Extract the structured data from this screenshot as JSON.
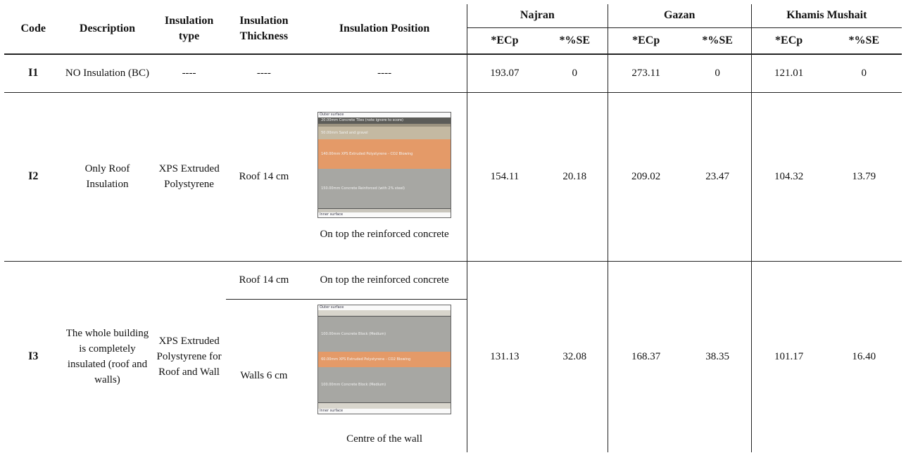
{
  "headers": {
    "code": "Code",
    "description": "Description",
    "insulation_type": "Insulation type",
    "insulation_thickness": "Insulation Thickness",
    "insulation_position": "Insulation Position",
    "cities": [
      "Najran",
      "Gazan",
      "Khamis Mushait"
    ],
    "ecp": "*ECp",
    "se": "*%SE"
  },
  "rows": [
    {
      "code": "I1",
      "description": "NO Insulation (BC)",
      "type": "----",
      "thickness": "----",
      "position": "----",
      "najran_ecp": "193.07",
      "najran_se": "0",
      "gazan_ecp": "273.11",
      "gazan_se": "0",
      "khamis_ecp": "121.01",
      "khamis_se": "0"
    },
    {
      "code": "I2",
      "description": "Only Roof Insulation",
      "type": "XPS Extruded Polystyrene",
      "thickness": "Roof 14 cm",
      "position_caption": "On top the reinforced concrete",
      "najran_ecp": "154.11",
      "najran_se": "20.18",
      "gazan_ecp": "209.02",
      "gazan_se": "23.47",
      "khamis_ecp": "104.32",
      "khamis_se": "13.79"
    },
    {
      "code": "I3",
      "description": "The whole building is completely insulated (roof and walls)",
      "type": "XPS Extruded Polystyrene for Roof and Wall",
      "thickness_roof": "Roof 14 cm",
      "thickness_walls": "Walls 6 cm",
      "position_roof": "On top the reinforced concrete",
      "position_caption": "Centre of the wall",
      "najran_ecp": "131.13",
      "najran_se": "32.08",
      "gazan_ecp": "168.37",
      "gazan_se": "38.35",
      "khamis_ecp": "101.17",
      "khamis_se": "16.40"
    }
  ],
  "diagram_roof": {
    "outer": "Outer surface",
    "inner": "Inner surface",
    "layers": [
      "20.00mm Concrete Tiles (note ignore to score)",
      "50.00mm Sand and gravel",
      "140.00mm XPS Extruded Polystyrene - CO2 Blowing",
      "150.00mm Concrete Reinforced (with 2% steel)"
    ]
  },
  "diagram_wall": {
    "outer": "Outer surface",
    "inner": "Inner surface",
    "layers": [
      "100.00mm Concrete Block (Medium)",
      "60.00mm XPS Extruded Polystyrene - CO2 Blowing",
      "100.00mm Concrete Block (Medium)"
    ]
  },
  "colors": {
    "insulation": "#e49a68",
    "concrete": "#a7a7a3",
    "tile": "#5c5c58",
    "sand": "#c4b9a2"
  }
}
